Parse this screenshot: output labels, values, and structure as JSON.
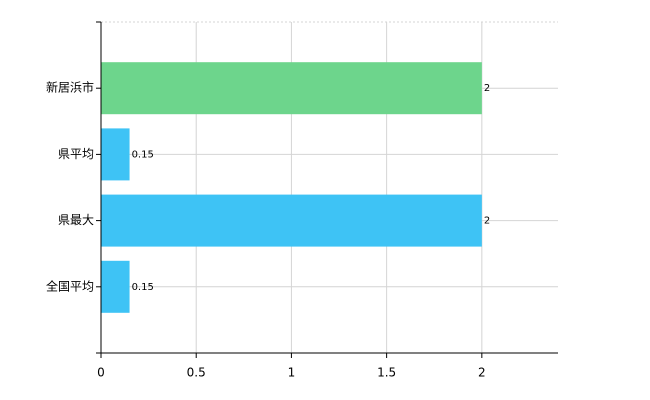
{
  "chart_data": {
    "type": "hbar",
    "categories": [
      "新居浜市",
      "県平均",
      "県最大",
      "全国平均"
    ],
    "values": [
      2,
      0.15,
      2,
      0.15
    ],
    "colors": [
      "#6dd58c",
      "#3ec3f5",
      "#3ec3f5",
      "#3ec3f5"
    ],
    "xlim": [
      0,
      2.4
    ],
    "xticks": [
      0,
      0.5,
      1,
      1.5,
      2
    ],
    "grid": true
  }
}
